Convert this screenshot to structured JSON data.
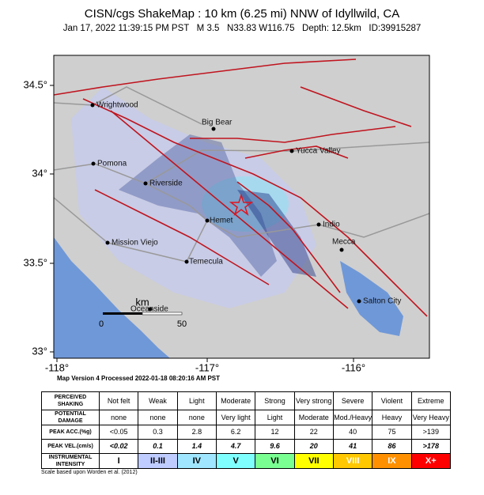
{
  "header": {
    "title": "CISN/cgs ShakeMap : 10 km (6.25 mi) NNW of Idyllwild, CA",
    "subtitle": "Jan 17, 2022 11:39:15 PM PST   M 3.5   N33.83 W116.75   Depth: 12.5km   ID:39915287"
  },
  "map": {
    "x_ticks": [
      "-118°",
      "-117°",
      "-116°"
    ],
    "y_ticks": [
      "34.5°",
      "34°",
      "33.5°",
      "33°"
    ],
    "cities": [
      "Wrightwood",
      "Big Bear",
      "Yucca Valley",
      "Pomona",
      "Riverside",
      "Hemet",
      "Indio",
      "Mission Viejo",
      "Mecca",
      "Temecula",
      "Oceanside",
      "Salton City"
    ],
    "scale": {
      "unit": "km",
      "start": "0",
      "end": "50"
    }
  },
  "processed": "Map Version 4 Processed 2022-01-18 08:20:16 AM PST",
  "table": {
    "rows": [
      [
        "PERCEIVED SHAKING",
        "Not felt",
        "Weak",
        "Light",
        "Moderate",
        "Strong",
        "Very strong",
        "Severe",
        "Violent",
        "Extreme"
      ],
      [
        "POTENTIAL DAMAGE",
        "none",
        "none",
        "none",
        "Very light",
        "Light",
        "Moderate",
        "Mod./Heavy",
        "Heavy",
        "Very Heavy"
      ],
      [
        "PEAK ACC.(%g)",
        "<0.05",
        "0.3",
        "2.8",
        "6.2",
        "12",
        "22",
        "40",
        "75",
        ">139"
      ],
      [
        "PEAK VEL.(cm/s)",
        "<0.02",
        "0.1",
        "1.4",
        "4.7",
        "9.6",
        "20",
        "41",
        "86",
        ">178"
      ],
      [
        "INSTRUMENTAL INTENSITY",
        "I",
        "II-III",
        "IV",
        "V",
        "VI",
        "VII",
        "VIII",
        "IX",
        "X+"
      ]
    ]
  },
  "footnote": "Scale based upon Worden et al. (2012)"
}
